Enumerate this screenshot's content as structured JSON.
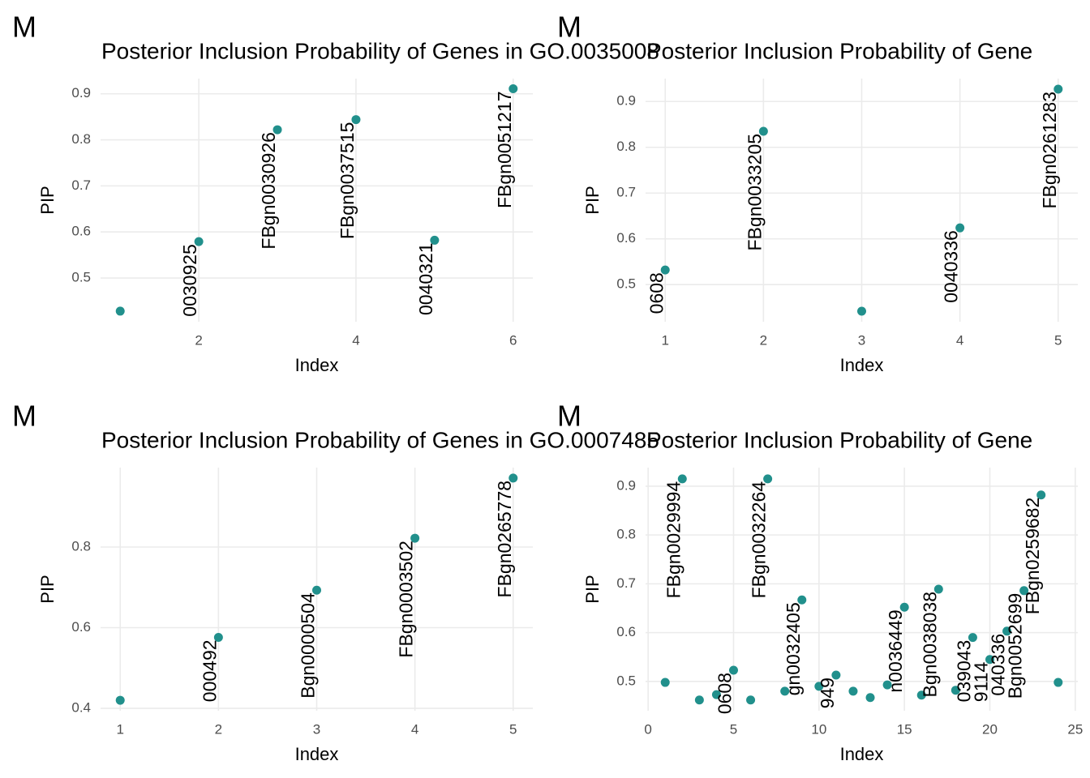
{
  "chart_data": [
    {
      "type": "scatter",
      "tag": "M",
      "title": "Posterior Inclusion Probability of Genes in GO.0035008",
      "x_label": "Index",
      "y_label": "PIP",
      "color": "#21908c",
      "grid": true,
      "x": [
        1,
        2,
        3,
        4,
        5,
        6
      ],
      "values": [
        0.428,
        0.579,
        0.822,
        0.844,
        0.582,
        0.911
      ],
      "point_labels": [
        null,
        "0030925",
        "FBgn0030926",
        "FBgn0037515",
        "0040321",
        "FBgn0051217"
      ],
      "xlim": [
        0.75,
        6.25
      ],
      "xticks": [
        2,
        4,
        6
      ],
      "ylim": [
        0.405,
        0.933
      ],
      "yticks": [
        0.5,
        0.6,
        0.7,
        0.8,
        0.9
      ]
    },
    {
      "type": "scatter",
      "tag": "M",
      "title": "Posterior Inclusion Probability of Gene",
      "x_label": "Index",
      "y_label": "PIP",
      "color": "#21908c",
      "grid": true,
      "x": [
        1,
        2,
        3,
        4,
        5
      ],
      "values": [
        0.532,
        0.835,
        0.442,
        0.624,
        0.927
      ],
      "point_labels": [
        "0608",
        "FBgn0033205",
        null,
        "0040336",
        "FBgn0261283"
      ],
      "xlim": [
        0.8,
        5.2
      ],
      "xticks": [
        1,
        2,
        3,
        4,
        5
      ],
      "ylim": [
        0.419,
        0.95
      ],
      "yticks": [
        0.5,
        0.6,
        0.7,
        0.8,
        0.9
      ]
    },
    {
      "type": "scatter",
      "tag": "M",
      "title": "Posterior Inclusion Probability of Genes in GO.0007485",
      "x_label": "Index",
      "y_label": "PIP",
      "color": "#21908c",
      "grid": true,
      "x": [
        1,
        2,
        3,
        4,
        5
      ],
      "values": [
        0.42,
        0.576,
        0.693,
        0.822,
        0.971
      ],
      "point_labels": [
        null,
        "000492",
        "Bgn0000504",
        "FBgn0003502",
        "FBgn0265778"
      ],
      "xlim": [
        0.8,
        5.2
      ],
      "xticks": [
        1,
        2,
        3,
        4,
        5
      ],
      "ylim": [
        0.394,
        0.997
      ],
      "yticks": [
        0.4,
        0.6,
        0.8
      ]
    },
    {
      "type": "scatter",
      "tag": "M",
      "title": "Posterior Inclusion Probability of Gene",
      "x_label": "Index",
      "y_label": "PIP",
      "color": "#21908c",
      "grid": true,
      "x": [
        1,
        2,
        3,
        4,
        5,
        6,
        7,
        8,
        9,
        10,
        11,
        12,
        13,
        14,
        15,
        16,
        17,
        18,
        19,
        20,
        21,
        22,
        23,
        24
      ],
      "values": [
        0.498,
        0.915,
        0.462,
        0.473,
        0.523,
        0.462,
        0.915,
        0.48,
        0.667,
        0.49,
        0.513,
        0.48,
        0.467,
        0.493,
        0.652,
        0.472,
        0.689,
        0.482,
        0.59,
        0.545,
        0.603,
        0.686,
        0.882,
        0.498
      ],
      "point_labels": [
        null,
        "FBgn0029994",
        null,
        null,
        "0608",
        null,
        "FBgn0032264",
        null,
        "gn0032405",
        null,
        "949",
        null,
        null,
        null,
        "n0036449",
        null,
        "Bgn0038038",
        null,
        "039043",
        "9114",
        "040336",
        "Bgn0052699",
        "FBgn0259682",
        null
      ],
      "xlim": [
        -0.15,
        25.15
      ],
      "xticks": [
        0,
        5,
        10,
        15,
        20,
        25
      ],
      "ylim": [
        0.44,
        0.938
      ],
      "yticks": [
        0.5,
        0.6,
        0.7,
        0.8,
        0.9
      ]
    }
  ]
}
